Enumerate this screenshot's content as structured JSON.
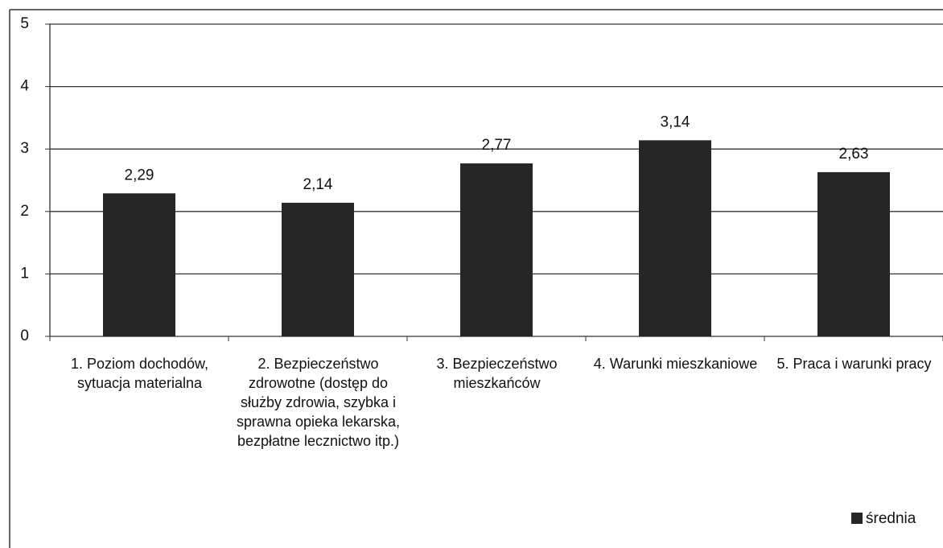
{
  "chart_data": {
    "type": "bar",
    "categories": [
      "1. Poziom dochodów, sytuacja materialna",
      "2. Bezpieczeństwo zdrowotne (dostęp do służby zdrowia, szybka i sprawna opieka lekarska, bezpłatne lecznictwo itp.)",
      "3. Bezpieczeństwo mieszkańców",
      "4. Warunki mieszkaniowe",
      "5. Praca i warunki pracy"
    ],
    "series": [
      {
        "name": "średnia",
        "color": "#262626",
        "values": [
          2.29,
          2.14,
          2.77,
          3.14,
          2.63
        ],
        "value_labels": [
          "2,29",
          "2,14",
          "2,77",
          "3,14",
          "2,63"
        ]
      }
    ],
    "ylim": [
      0,
      5
    ],
    "yticks": [
      0,
      1,
      2,
      3,
      4,
      5
    ],
    "grid": true,
    "legend": "bottom-right"
  }
}
